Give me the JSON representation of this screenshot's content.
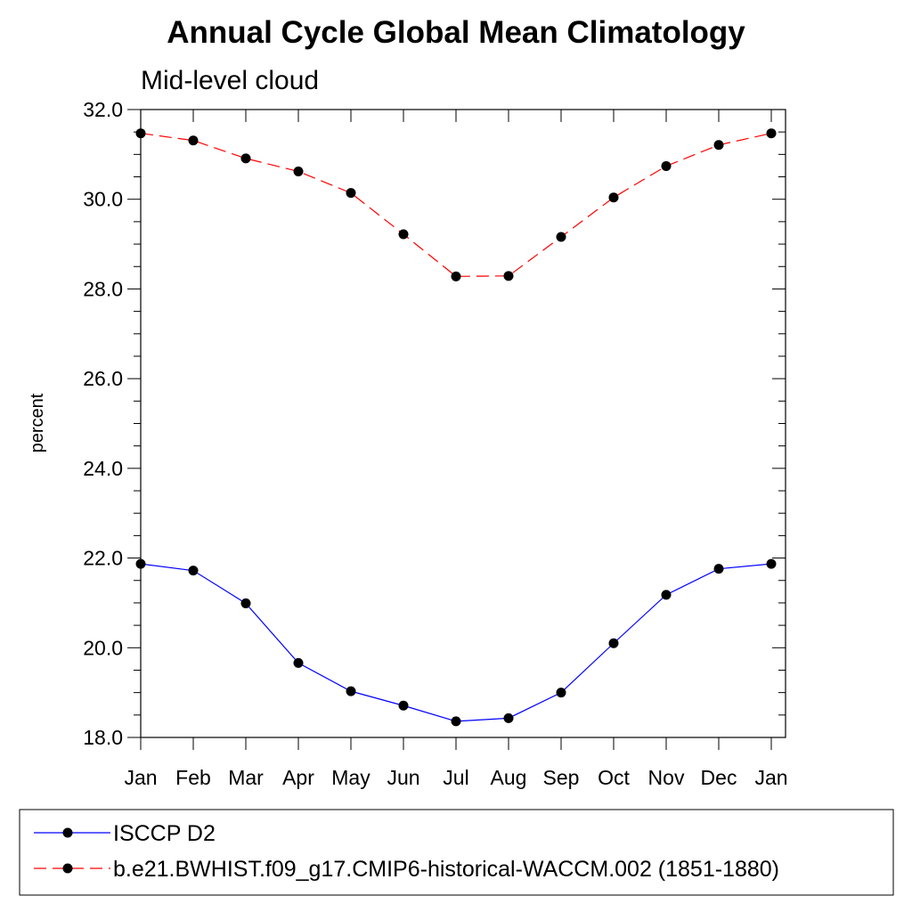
{
  "chart_data": {
    "type": "line",
    "title": "Annual Cycle Global Mean Climatology",
    "subtitle": "Mid-level cloud",
    "xlabel": "",
    "ylabel": "percent",
    "categories": [
      "Jan",
      "Feb",
      "Mar",
      "Apr",
      "May",
      "Jun",
      "Jul",
      "Aug",
      "Sep",
      "Oct",
      "Nov",
      "Dec",
      "Jan"
    ],
    "ylim": [
      18.0,
      32.0
    ],
    "yticks": [
      "18.0",
      "20.0",
      "22.0",
      "24.0",
      "26.0",
      "28.0",
      "30.0",
      "32.0"
    ],
    "grid": false,
    "legend_position": "bottom",
    "series": [
      {
        "name": "ISCCP D2",
        "color": "#0000ff",
        "dash": "solid",
        "marker": "circle",
        "values": [
          21.87,
          21.72,
          20.99,
          19.66,
          19.03,
          18.71,
          18.36,
          18.43,
          19.0,
          20.1,
          21.18,
          21.76,
          21.87
        ]
      },
      {
        "name": "b.e21.BWHIST.f09_g17.CMIP6-historical-WACCM.002 (1851-1880)",
        "color": "#ff0000",
        "dash": "dashed",
        "marker": "circle",
        "values": [
          31.47,
          31.31,
          30.91,
          30.62,
          30.14,
          29.22,
          28.28,
          28.29,
          29.16,
          30.04,
          30.74,
          31.21,
          31.47
        ]
      }
    ]
  }
}
